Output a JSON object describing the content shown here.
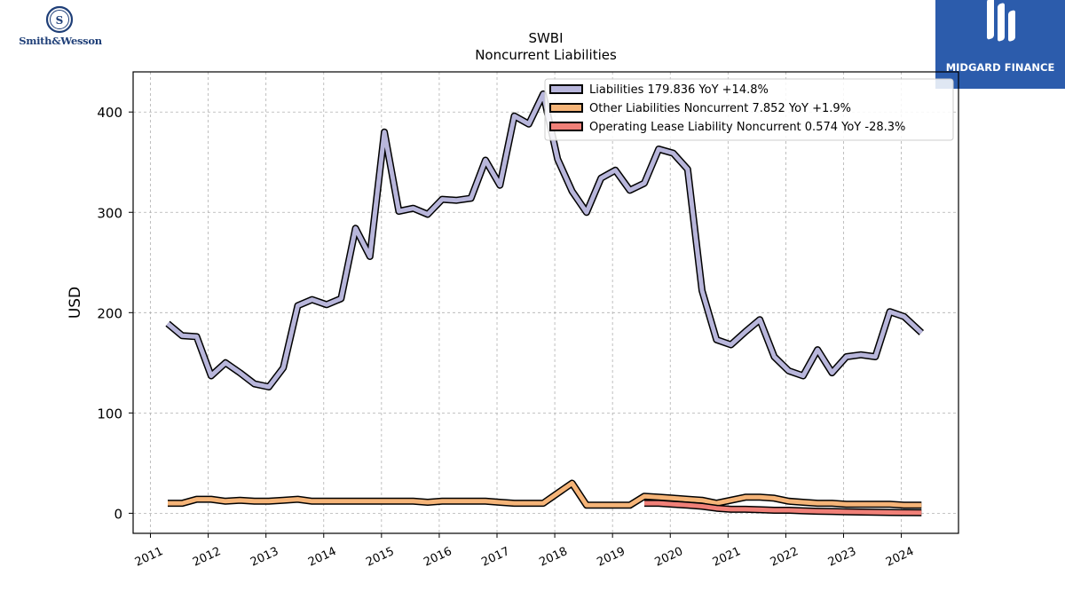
{
  "logos": {
    "left": {
      "text": "Smith&Wesson",
      "icon": "sw-seal-icon",
      "color": "#1f3f78"
    },
    "right": {
      "text": "MIDGARD FINANCE",
      "icon": "midgard-m-icon",
      "background": "#2c5cac"
    }
  },
  "chart_data": {
    "type": "line",
    "title": "SWBI",
    "subtitle": "Noncurrent  Liabilities",
    "xlabel": "",
    "ylabel": "USD",
    "xlim": [
      2010.7,
      2024.99
    ],
    "ylim": [
      -20,
      440
    ],
    "yticks": [
      0,
      100,
      200,
      300,
      400
    ],
    "xticks": [
      "2011",
      "2012",
      "2013",
      "2014",
      "2015",
      "2016",
      "2017",
      "2018",
      "2019",
      "2020",
      "2021",
      "2022",
      "2023",
      "2024"
    ],
    "grid": true,
    "legend_position": "top-right",
    "series": [
      {
        "name": "Liabilities",
        "legend": "Liabilities  179.836 YoY +14.8%",
        "color": "#b8b6db",
        "x": [
          2011.3,
          2011.55,
          2011.8,
          2012.05,
          2012.3,
          2012.55,
          2012.8,
          2013.05,
          2013.3,
          2013.55,
          2013.8,
          2014.05,
          2014.3,
          2014.55,
          2014.8,
          2015.05,
          2015.3,
          2015.55,
          2015.8,
          2016.05,
          2016.3,
          2016.55,
          2016.8,
          2017.05,
          2017.3,
          2017.55,
          2017.8,
          2018.05,
          2018.3,
          2018.55,
          2018.8,
          2019.05,
          2019.3,
          2019.55,
          2019.8,
          2020.05,
          2020.3,
          2020.55,
          2020.8,
          2021.05,
          2021.3,
          2021.55,
          2021.8,
          2022.05,
          2022.3,
          2022.55,
          2022.8,
          2023.05,
          2023.3,
          2023.55,
          2023.8,
          2024.05,
          2024.35
        ],
        "values": [
          189,
          177,
          176,
          137,
          150,
          140,
          129,
          126,
          145,
          207,
          213,
          208,
          214,
          284,
          256,
          380,
          301,
          304,
          298,
          313,
          312,
          314,
          352,
          327,
          396,
          388,
          418,
          353,
          321,
          300,
          334,
          342,
          322,
          329,
          363,
          359,
          343,
          222,
          173,
          168,
          181,
          193,
          156,
          142,
          137,
          163,
          140,
          156,
          158,
          156,
          201,
          196,
          180
        ]
      },
      {
        "name": "Other Liabilities Noncurrent",
        "legend": "Other Liabilities Noncurrent  7.852 YoY +1.9%",
        "color": "#f5b478",
        "x": [
          2011.3,
          2011.55,
          2011.8,
          2012.05,
          2012.3,
          2012.55,
          2012.8,
          2013.05,
          2013.3,
          2013.55,
          2013.8,
          2014.05,
          2014.3,
          2014.55,
          2014.8,
          2015.05,
          2015.3,
          2015.55,
          2015.8,
          2016.05,
          2016.3,
          2016.55,
          2016.8,
          2017.05,
          2017.3,
          2017.55,
          2017.8,
          2018.05,
          2018.3,
          2018.55,
          2018.8,
          2019.05,
          2019.3,
          2019.55,
          2019.8,
          2020.05,
          2020.3,
          2020.55,
          2020.8,
          2021.05,
          2021.3,
          2021.55,
          2021.8,
          2022.05,
          2022.3,
          2022.55,
          2022.8,
          2023.05,
          2023.3,
          2023.55,
          2023.8,
          2024.05,
          2024.35
        ],
        "values": [
          10,
          10,
          14,
          14,
          12,
          13,
          12,
          12,
          13,
          14,
          12,
          12,
          12,
          12,
          12,
          12,
          12,
          12,
          11,
          12,
          12,
          12,
          12,
          11,
          10,
          10,
          10,
          20,
          30,
          8,
          8,
          8,
          8,
          17,
          16,
          15,
          14,
          13,
          10,
          13,
          16,
          16,
          15,
          12,
          11,
          10,
          10,
          9,
          9,
          9,
          9,
          8,
          8
        ]
      },
      {
        "name": "Operating Lease Liability Noncurrent",
        "legend": "Operating Lease Liability Noncurrent  0.574 YoY -28.3%",
        "color": "#f08078",
        "x": [
          2019.55,
          2019.8,
          2020.05,
          2020.3,
          2020.55,
          2020.8,
          2021.05,
          2021.3,
          2021.55,
          2021.8,
          2022.05,
          2022.3,
          2022.55,
          2022.8,
          2023.05,
          2023.3,
          2023.55,
          2023.8,
          2024.05,
          2024.35
        ],
        "values": [
          10,
          10,
          9,
          8,
          7,
          5,
          4,
          4,
          3.5,
          3,
          3,
          2.5,
          2,
          1.8,
          1.5,
          1.2,
          1,
          0.8,
          0.7,
          0.6
        ]
      }
    ]
  }
}
